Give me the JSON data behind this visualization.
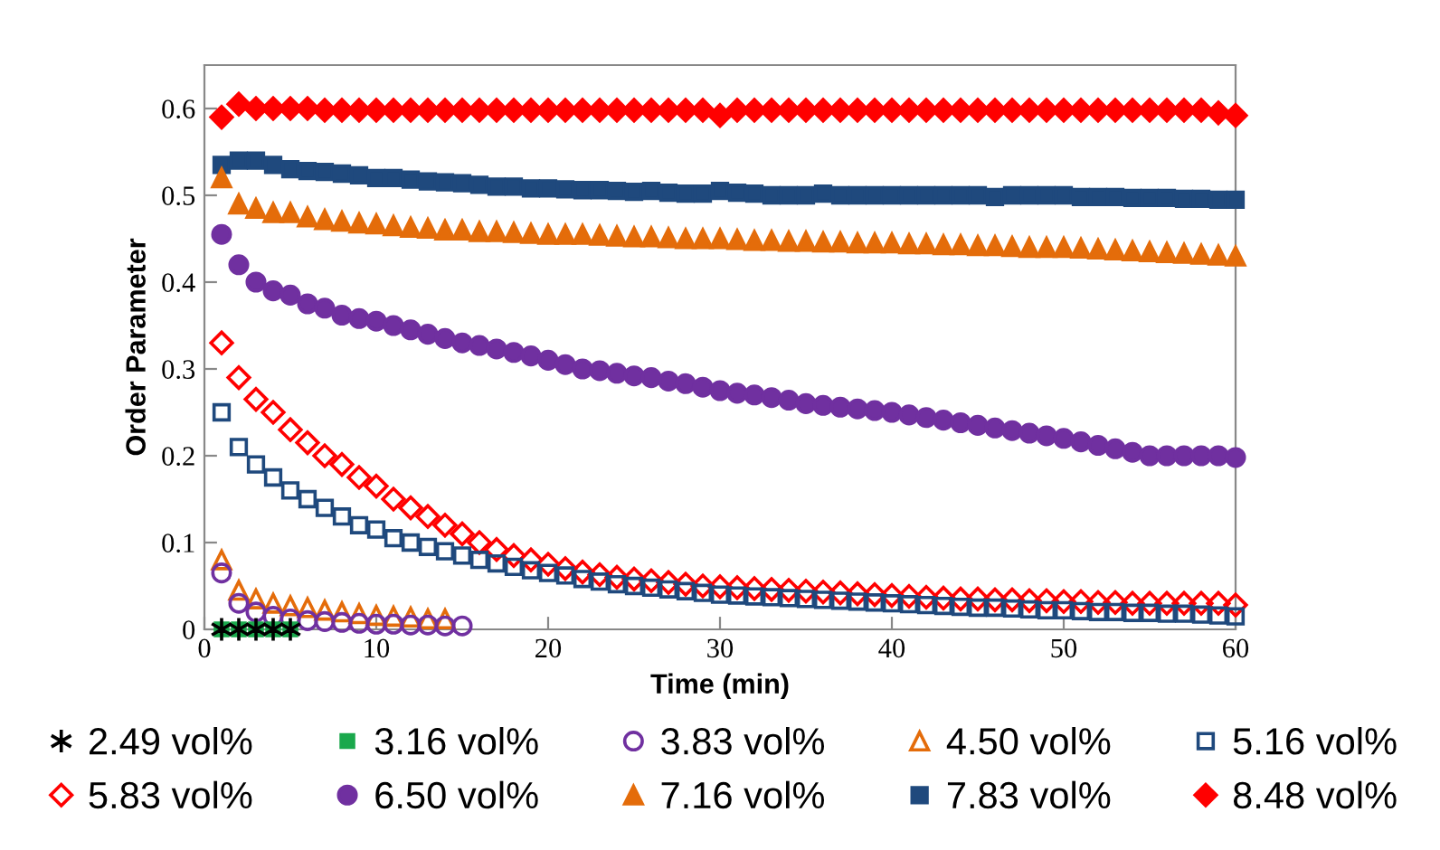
{
  "chart_data": {
    "type": "scatter",
    "xlabel": "Time (min)",
    "ylabel": "Order Parameter",
    "xlim": [
      0,
      60
    ],
    "xticks": [
      0,
      10,
      20,
      30,
      40,
      50,
      60
    ],
    "ylim": [
      0,
      0.65
    ],
    "yticks": [
      0,
      0.1,
      0.2,
      0.3,
      0.4,
      0.5,
      0.6
    ],
    "grid": false,
    "legend": "bottom",
    "series": [
      {
        "name": "2.49 vol%",
        "color": "#000000",
        "marker": "cross",
        "x": [
          1,
          2,
          3,
          4,
          5
        ],
        "values": [
          0,
          0,
          0,
          0,
          0
        ]
      },
      {
        "name": "3.16 vol%",
        "color": "#1aa84c",
        "marker": "square",
        "x": [
          1,
          2,
          3,
          4,
          5
        ],
        "values": [
          0,
          0,
          0,
          0,
          0
        ]
      },
      {
        "name": "3.83 vol%",
        "color": "#7030a0",
        "marker": "circle",
        "x": [
          1,
          2,
          3,
          4,
          5,
          6,
          7,
          8,
          9,
          10,
          11,
          12,
          13,
          14,
          15
        ],
        "values": [
          0.065,
          0.03,
          0.02,
          0.015,
          0.012,
          0.01,
          0.009,
          0.008,
          0.007,
          0.006,
          0.006,
          0.005,
          0.005,
          0.004,
          0.004
        ]
      },
      {
        "name": "4.50 vol%",
        "color": "#e46c0a",
        "marker": "triangle",
        "x": [
          1,
          2,
          3,
          4,
          5,
          6,
          7,
          8,
          9,
          10,
          11,
          12,
          13,
          14
        ],
        "values": [
          0.08,
          0.045,
          0.035,
          0.03,
          0.027,
          0.025,
          0.022,
          0.02,
          0.018,
          0.016,
          0.015,
          0.014,
          0.012,
          0.012
        ]
      },
      {
        "name": "5.16 vol%",
        "color": "#1f497d",
        "marker": "square",
        "x": [
          1,
          2,
          3,
          4,
          5,
          6,
          7,
          8,
          9,
          10,
          11,
          12,
          13,
          14,
          15,
          16,
          17,
          18,
          19,
          20,
          21,
          22,
          23,
          24,
          25,
          26,
          27,
          28,
          29,
          30,
          31,
          32,
          33,
          34,
          35,
          36,
          37,
          38,
          39,
          40,
          41,
          42,
          43,
          44,
          45,
          46,
          47,
          48,
          49,
          50,
          51,
          52,
          53,
          54,
          55,
          56,
          57,
          58,
          59,
          60
        ],
        "values": [
          0.25,
          0.21,
          0.19,
          0.175,
          0.16,
          0.15,
          0.14,
          0.13,
          0.12,
          0.115,
          0.105,
          0.1,
          0.095,
          0.09,
          0.085,
          0.08,
          0.076,
          0.072,
          0.068,
          0.065,
          0.062,
          0.058,
          0.055,
          0.052,
          0.05,
          0.048,
          0.046,
          0.044,
          0.042,
          0.04,
          0.039,
          0.038,
          0.037,
          0.036,
          0.035,
          0.034,
          0.033,
          0.032,
          0.031,
          0.03,
          0.029,
          0.028,
          0.027,
          0.026,
          0.025,
          0.025,
          0.024,
          0.023,
          0.022,
          0.022,
          0.021,
          0.02,
          0.02,
          0.019,
          0.019,
          0.018,
          0.018,
          0.017,
          0.016,
          0.015
        ]
      },
      {
        "name": "5.83 vol%",
        "color": "#ff0000",
        "marker": "diamond",
        "x": [
          1,
          2,
          3,
          4,
          5,
          6,
          7,
          8,
          9,
          10,
          11,
          12,
          13,
          14,
          15,
          16,
          17,
          18,
          19,
          20,
          21,
          22,
          23,
          24,
          25,
          26,
          27,
          28,
          29,
          30,
          31,
          32,
          33,
          34,
          35,
          36,
          37,
          38,
          39,
          40,
          41,
          42,
          43,
          44,
          45,
          46,
          47,
          48,
          49,
          50,
          51,
          52,
          53,
          54,
          55,
          56,
          57,
          58,
          59,
          60
        ],
        "values": [
          0.33,
          0.29,
          0.265,
          0.25,
          0.23,
          0.215,
          0.2,
          0.19,
          0.175,
          0.165,
          0.15,
          0.14,
          0.13,
          0.12,
          0.11,
          0.1,
          0.092,
          0.085,
          0.08,
          0.075,
          0.07,
          0.066,
          0.063,
          0.06,
          0.058,
          0.056,
          0.054,
          0.052,
          0.05,
          0.049,
          0.048,
          0.047,
          0.046,
          0.045,
          0.044,
          0.043,
          0.042,
          0.041,
          0.04,
          0.039,
          0.038,
          0.037,
          0.036,
          0.035,
          0.035,
          0.034,
          0.034,
          0.033,
          0.033,
          0.032,
          0.032,
          0.031,
          0.031,
          0.03,
          0.03,
          0.03,
          0.03,
          0.03,
          0.03,
          0.028
        ]
      },
      {
        "name": "6.50 vol%",
        "color": "#7030a0",
        "marker": "circle",
        "x": [
          1,
          2,
          3,
          4,
          5,
          6,
          7,
          8,
          9,
          10,
          11,
          12,
          13,
          14,
          15,
          16,
          17,
          18,
          19,
          20,
          21,
          22,
          23,
          24,
          25,
          26,
          27,
          28,
          29,
          30,
          31,
          32,
          33,
          34,
          35,
          36,
          37,
          38,
          39,
          40,
          41,
          42,
          43,
          44,
          45,
          46,
          47,
          48,
          49,
          50,
          51,
          52,
          53,
          54,
          55,
          56,
          57,
          58,
          59,
          60
        ],
        "values": [
          0.455,
          0.42,
          0.4,
          0.39,
          0.385,
          0.375,
          0.37,
          0.362,
          0.358,
          0.355,
          0.35,
          0.345,
          0.34,
          0.335,
          0.33,
          0.327,
          0.323,
          0.319,
          0.315,
          0.31,
          0.305,
          0.3,
          0.298,
          0.295,
          0.292,
          0.29,
          0.286,
          0.283,
          0.279,
          0.275,
          0.272,
          0.27,
          0.267,
          0.264,
          0.26,
          0.258,
          0.256,
          0.254,
          0.252,
          0.25,
          0.247,
          0.244,
          0.241,
          0.238,
          0.235,
          0.232,
          0.229,
          0.226,
          0.223,
          0.22,
          0.216,
          0.212,
          0.208,
          0.204,
          0.2,
          0.2,
          0.2,
          0.2,
          0.2,
          0.198
        ]
      },
      {
        "name": "7.16 vol%",
        "color": "#e46c0a",
        "marker": "triangle",
        "x": [
          1,
          2,
          3,
          4,
          5,
          6,
          7,
          8,
          9,
          10,
          11,
          12,
          13,
          14,
          15,
          16,
          17,
          18,
          19,
          20,
          21,
          22,
          23,
          24,
          25,
          26,
          27,
          28,
          29,
          30,
          31,
          32,
          33,
          34,
          35,
          36,
          37,
          38,
          39,
          40,
          41,
          42,
          43,
          44,
          45,
          46,
          47,
          48,
          49,
          50,
          51,
          52,
          53,
          54,
          55,
          56,
          57,
          58,
          59,
          60
        ],
        "values": [
          0.52,
          0.49,
          0.485,
          0.48,
          0.48,
          0.475,
          0.472,
          0.47,
          0.468,
          0.467,
          0.465,
          0.463,
          0.462,
          0.46,
          0.46,
          0.458,
          0.458,
          0.457,
          0.456,
          0.455,
          0.455,
          0.455,
          0.454,
          0.453,
          0.452,
          0.452,
          0.451,
          0.45,
          0.45,
          0.45,
          0.449,
          0.448,
          0.448,
          0.447,
          0.447,
          0.446,
          0.446,
          0.445,
          0.445,
          0.445,
          0.444,
          0.444,
          0.443,
          0.443,
          0.442,
          0.442,
          0.441,
          0.44,
          0.44,
          0.44,
          0.439,
          0.438,
          0.437,
          0.436,
          0.435,
          0.434,
          0.433,
          0.432,
          0.431,
          0.43
        ]
      },
      {
        "name": "7.83 vol%",
        "color": "#1f497d",
        "marker": "square",
        "x": [
          1,
          2,
          3,
          4,
          5,
          6,
          7,
          8,
          9,
          10,
          11,
          12,
          13,
          14,
          15,
          16,
          17,
          18,
          19,
          20,
          21,
          22,
          23,
          24,
          25,
          26,
          27,
          28,
          29,
          30,
          31,
          32,
          33,
          34,
          35,
          36,
          37,
          38,
          39,
          40,
          41,
          42,
          43,
          44,
          45,
          46,
          47,
          48,
          49,
          50,
          51,
          52,
          53,
          54,
          55,
          56,
          57,
          58,
          59,
          60
        ],
        "values": [
          0.535,
          0.54,
          0.54,
          0.535,
          0.53,
          0.528,
          0.527,
          0.525,
          0.523,
          0.52,
          0.52,
          0.518,
          0.516,
          0.515,
          0.514,
          0.512,
          0.51,
          0.51,
          0.508,
          0.508,
          0.507,
          0.506,
          0.506,
          0.505,
          0.504,
          0.505,
          0.503,
          0.502,
          0.502,
          0.505,
          0.503,
          0.502,
          0.5,
          0.5,
          0.5,
          0.502,
          0.5,
          0.5,
          0.5,
          0.5,
          0.5,
          0.5,
          0.5,
          0.5,
          0.5,
          0.498,
          0.5,
          0.5,
          0.5,
          0.5,
          0.498,
          0.498,
          0.498,
          0.497,
          0.497,
          0.497,
          0.496,
          0.496,
          0.495,
          0.495
        ]
      },
      {
        "name": "8.48 vol%",
        "color": "#ff0000",
        "marker": "diamond",
        "x": [
          1,
          2,
          3,
          4,
          5,
          6,
          7,
          8,
          9,
          10,
          11,
          12,
          13,
          14,
          15,
          16,
          17,
          18,
          19,
          20,
          21,
          22,
          23,
          24,
          25,
          26,
          27,
          28,
          29,
          30,
          31,
          32,
          33,
          34,
          35,
          36,
          37,
          38,
          39,
          40,
          41,
          42,
          43,
          44,
          45,
          46,
          47,
          48,
          49,
          50,
          51,
          52,
          53,
          54,
          55,
          56,
          57,
          58,
          59,
          60
        ],
        "values": [
          0.59,
          0.605,
          0.6,
          0.6,
          0.6,
          0.6,
          0.598,
          0.598,
          0.598,
          0.598,
          0.598,
          0.598,
          0.598,
          0.598,
          0.598,
          0.598,
          0.598,
          0.598,
          0.598,
          0.598,
          0.598,
          0.598,
          0.598,
          0.598,
          0.598,
          0.598,
          0.598,
          0.598,
          0.598,
          0.592,
          0.598,
          0.598,
          0.598,
          0.598,
          0.598,
          0.598,
          0.598,
          0.598,
          0.598,
          0.598,
          0.598,
          0.598,
          0.598,
          0.598,
          0.598,
          0.598,
          0.598,
          0.598,
          0.598,
          0.598,
          0.598,
          0.598,
          0.598,
          0.598,
          0.598,
          0.598,
          0.598,
          0.598,
          0.595,
          0.592
        ]
      }
    ]
  }
}
